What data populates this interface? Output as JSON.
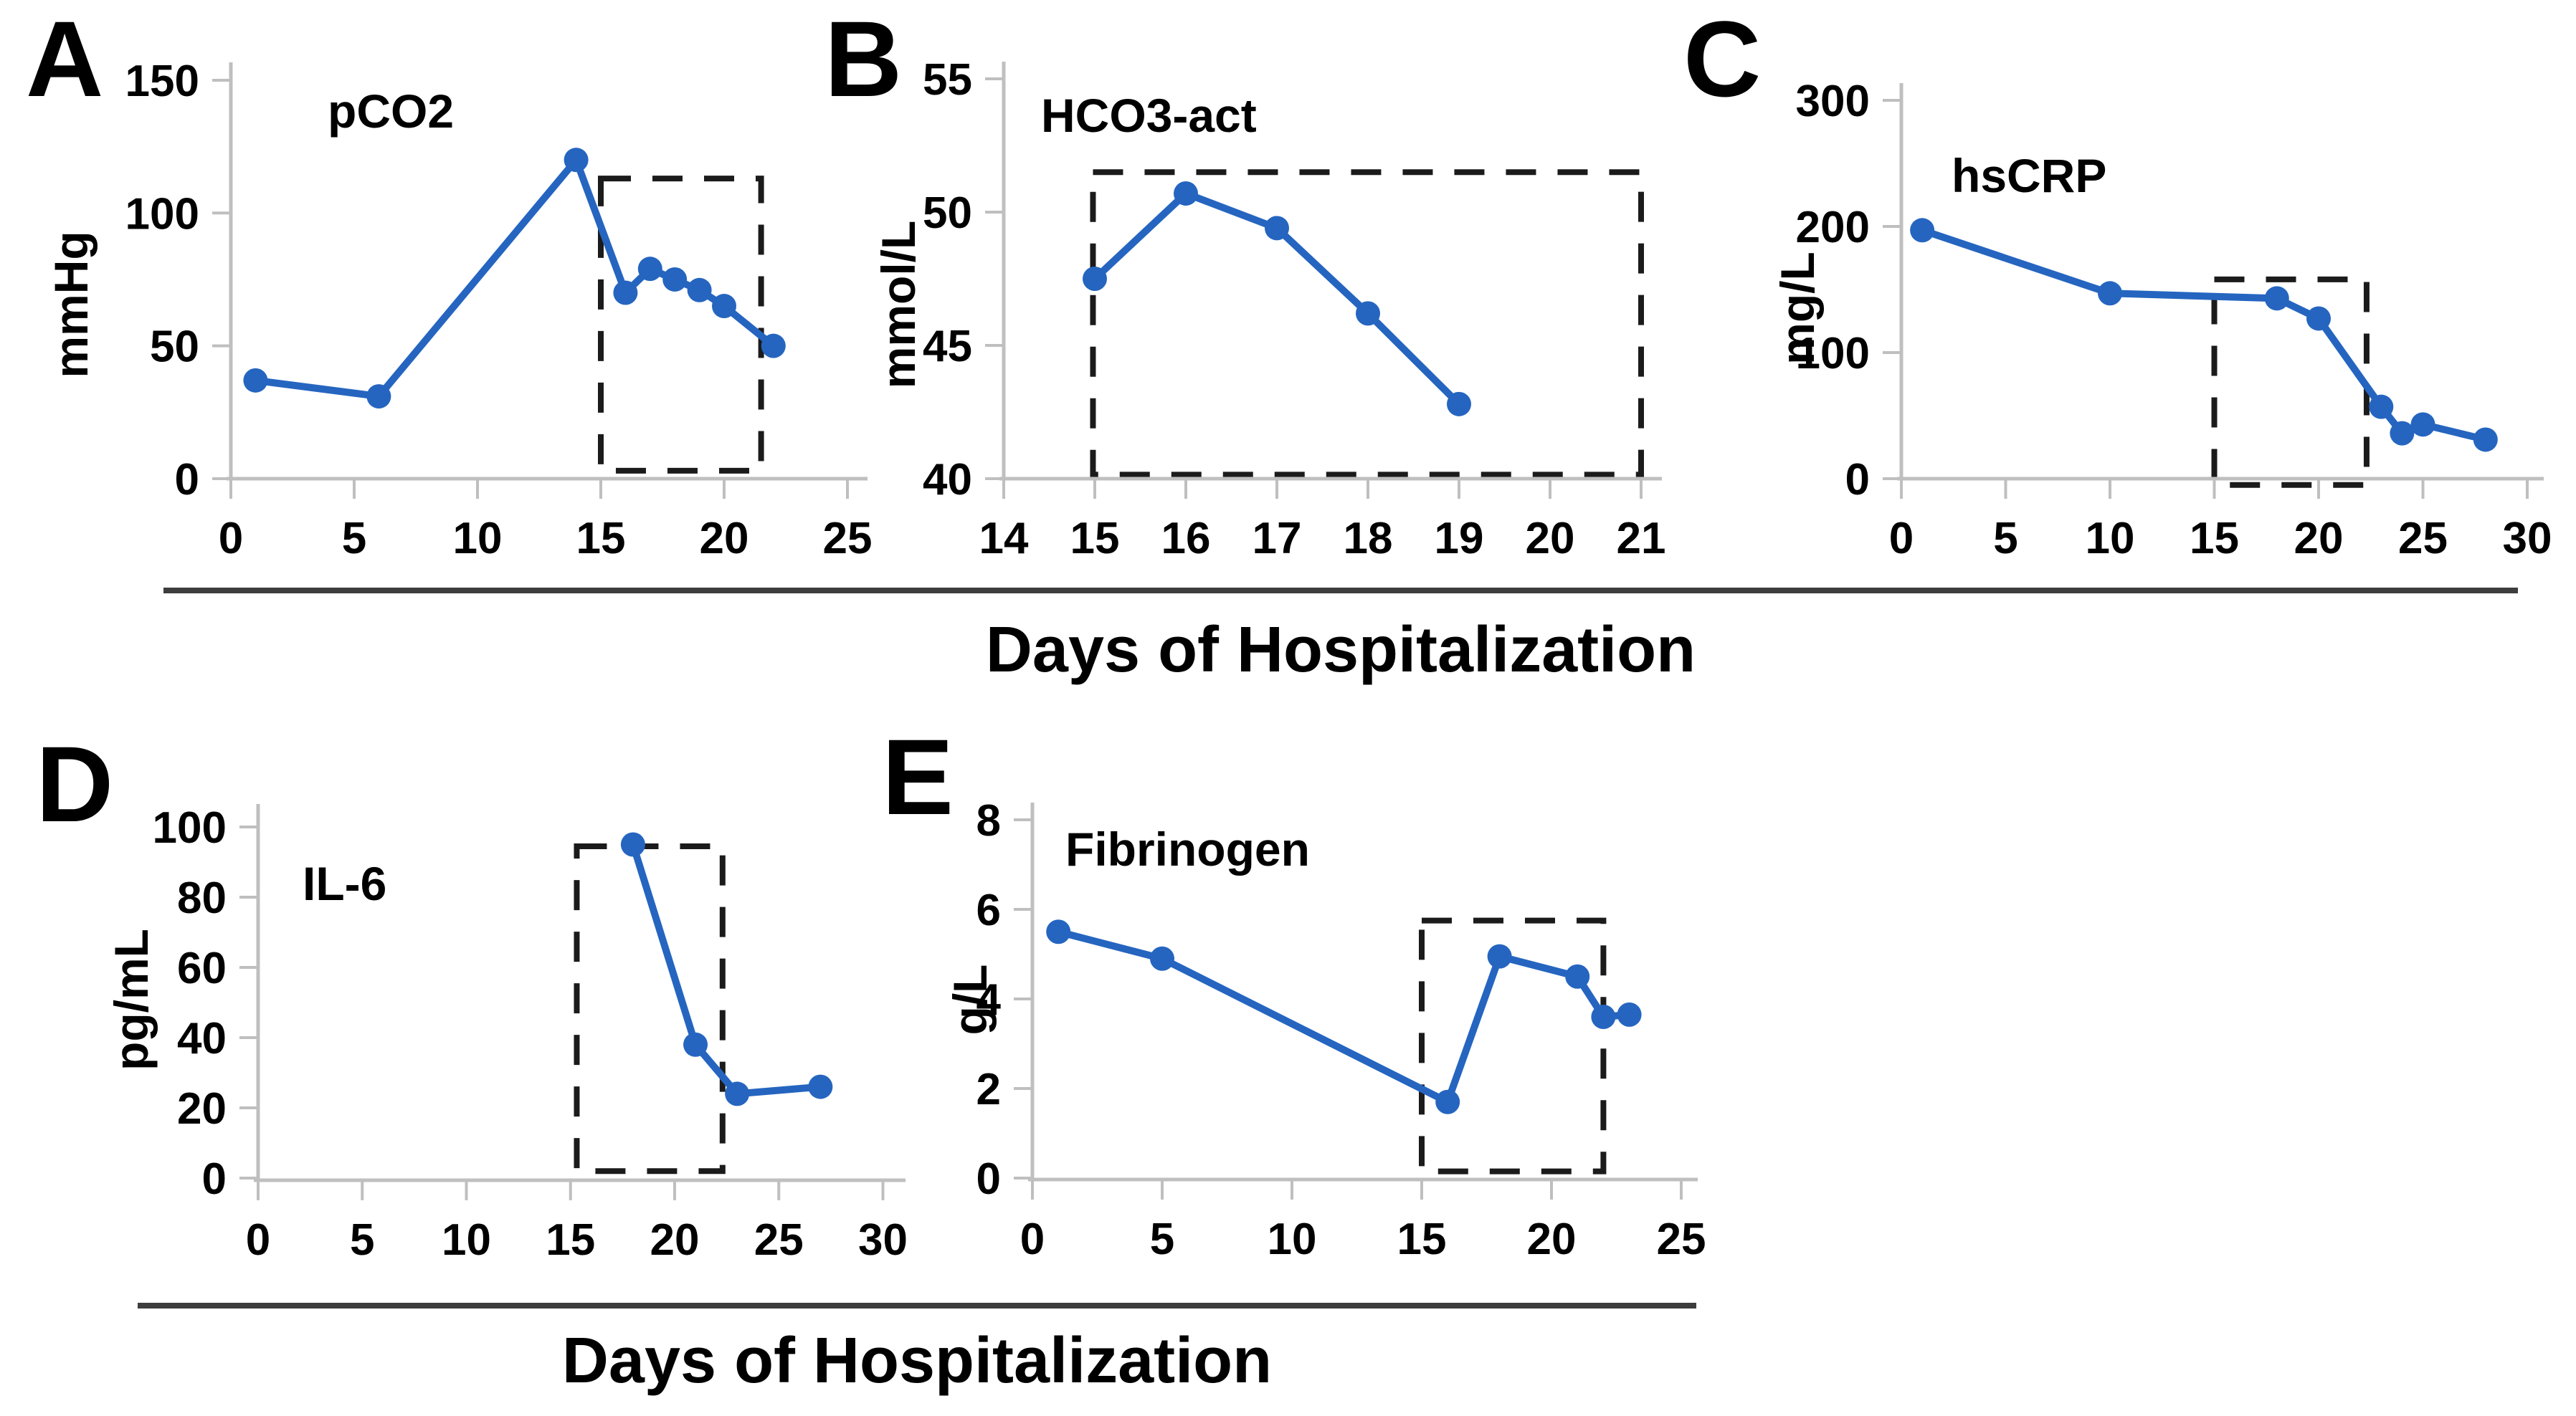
{
  "figure": {
    "xlabel_top": "Days of Hospitalization",
    "xlabel_bottom": "Days of Hospitalization"
  },
  "colors": {
    "line": "#2565c0",
    "axis": "#bfbfbf",
    "dash_box": "#1b1b1b",
    "text": "#000000",
    "separator": "#3d3d3d"
  },
  "chart_data": [
    {
      "id": "A",
      "panel_label": "A",
      "type": "line",
      "title": "pCO2",
      "ylabel": "mmHg",
      "xlabel": "Days of Hospitalization",
      "xlim": [
        0,
        25
      ],
      "ylim": [
        0,
        150
      ],
      "xticks": [
        0,
        5,
        10,
        15,
        20,
        25
      ],
      "yticks": [
        0,
        50,
        100,
        150
      ],
      "grid": false,
      "x": [
        1,
        6,
        14,
        16,
        17,
        18,
        19,
        20,
        22
      ],
      "y": [
        37,
        31,
        120,
        70,
        79,
        75,
        71,
        65,
        50
      ],
      "dash_box": {
        "x0": 15,
        "x1": 21.5,
        "y0": 3,
        "y1": 113
      }
    },
    {
      "id": "B",
      "panel_label": "B",
      "type": "line",
      "title": "HCO3-act",
      "ylabel": "mmol/L",
      "xlabel": "Days of Hospitalization",
      "xlim": [
        14,
        21
      ],
      "ylim": [
        40,
        55
      ],
      "xticks": [
        14,
        15,
        16,
        17,
        18,
        19,
        20,
        21
      ],
      "yticks": [
        40,
        45,
        50,
        55
      ],
      "grid": false,
      "x": [
        15,
        16,
        17,
        18,
        19
      ],
      "y": [
        47.5,
        50.7,
        49.4,
        46.2,
        42.8
      ],
      "dash_box": {
        "x0": 14.98,
        "x1": 21,
        "y0": 40.15,
        "y1": 51.5
      }
    },
    {
      "id": "C",
      "panel_label": "C",
      "type": "line",
      "title": "hsCRP",
      "ylabel": "mg/L",
      "xlabel": "Days of Hospitalization",
      "xlim": [
        0,
        30
      ],
      "ylim": [
        0,
        300
      ],
      "xticks": [
        0,
        5,
        10,
        15,
        20,
        25,
        30
      ],
      "yticks": [
        0,
        100,
        200,
        300
      ],
      "grid": false,
      "x": [
        1,
        10,
        18,
        20,
        23,
        24,
        25,
        28
      ],
      "y": [
        197,
        147,
        143,
        127,
        57,
        36,
        43,
        31
      ],
      "dash_box": {
        "x0": 15,
        "x1": 22.3,
        "y0": -5,
        "y1": 158
      }
    },
    {
      "id": "D",
      "panel_label": "D",
      "type": "line",
      "title": "IL-6",
      "ylabel": "pg/mL",
      "xlabel": "Days of Hospitalization",
      "xlim": [
        0,
        30
      ],
      "ylim": [
        0,
        100
      ],
      "xticks": [
        0,
        5,
        10,
        15,
        20,
        25,
        30
      ],
      "yticks": [
        0,
        20,
        40,
        60,
        80,
        100
      ],
      "grid": false,
      "x": [
        18,
        21,
        23,
        27
      ],
      "y": [
        95,
        38,
        24,
        26
      ],
      "dash_box": {
        "x0": 15.3,
        "x1": 22.3,
        "y0": 2,
        "y1": 94.5
      }
    },
    {
      "id": "E",
      "panel_label": "E",
      "type": "line",
      "title": "Fibrinogen",
      "ylabel": "g/L",
      "xlabel": "Days of Hospitalization",
      "xlim": [
        0,
        25
      ],
      "ylim": [
        0,
        8
      ],
      "xticks": [
        0,
        5,
        10,
        15,
        20,
        25
      ],
      "yticks": [
        0,
        2,
        4,
        6,
        8
      ],
      "grid": false,
      "x": [
        1,
        5,
        16,
        18,
        21,
        22,
        23
      ],
      "y": [
        5.5,
        4.9,
        1.7,
        4.95,
        4.5,
        3.6,
        3.65
      ],
      "dash_box": {
        "x0": 15,
        "x1": 22,
        "y0": 0.15,
        "y1": 5.75
      }
    }
  ]
}
